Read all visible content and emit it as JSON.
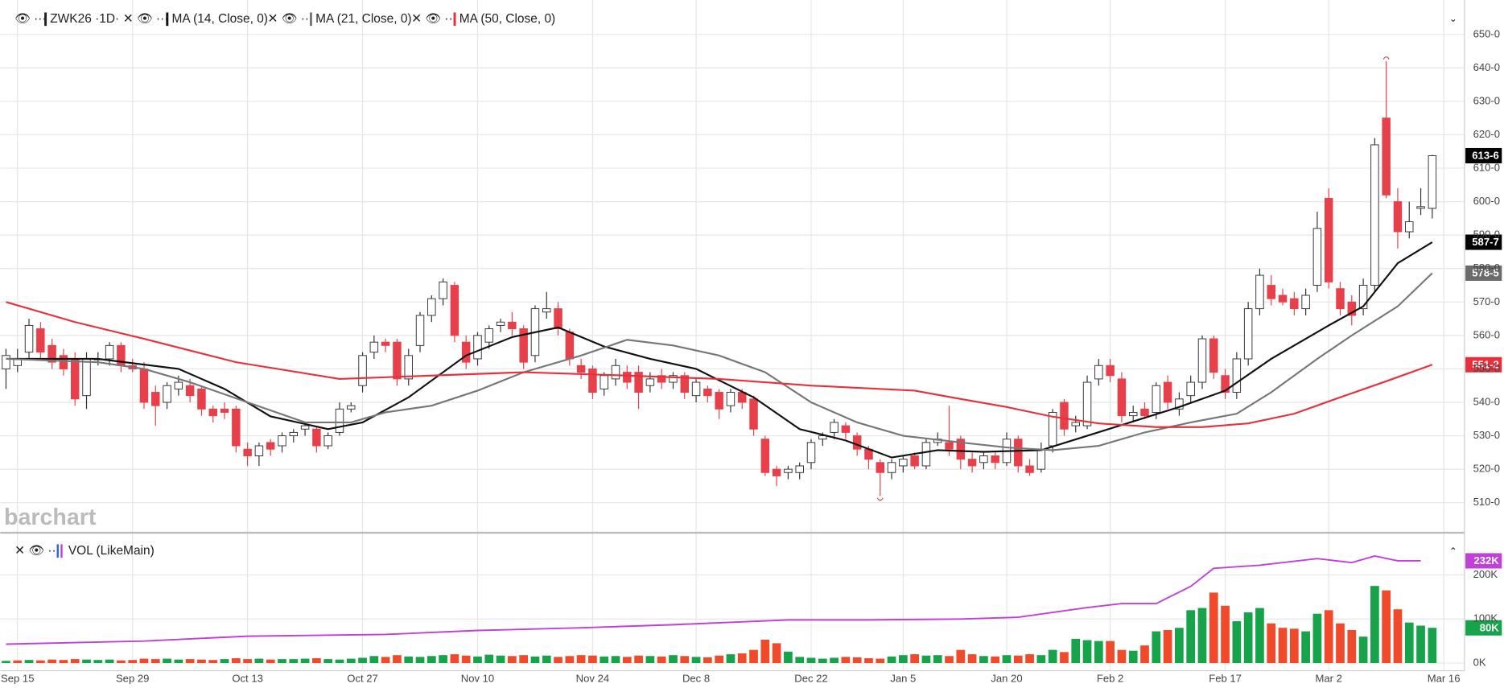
{
  "chart_data": {
    "type": "candlestick",
    "title": "ZWK26 ·1D·",
    "watermark": "barchart",
    "grid": true,
    "up_color": "#ffffff",
    "down_color": "#e8404a",
    "xlim": [
      -0.5,
      126.8
    ],
    "xticks": [
      {
        "value": 1,
        "label": "Sep 15"
      },
      {
        "value": 11,
        "label": "Sep 29"
      },
      {
        "value": 21,
        "label": "Oct 13"
      },
      {
        "value": 31,
        "label": "Oct 27"
      },
      {
        "value": 41,
        "label": "Nov 10"
      },
      {
        "value": 51,
        "label": "Nov 24"
      },
      {
        "value": 60,
        "label": "Dec 8"
      },
      {
        "value": 70,
        "label": "Dec 22"
      },
      {
        "value": 78,
        "label": "Jan 5"
      },
      {
        "value": 87,
        "label": "Jan 20"
      },
      {
        "value": 96,
        "label": "Feb 2"
      },
      {
        "value": 106,
        "label": "Feb 17"
      },
      {
        "value": 115,
        "label": "Mar 2"
      },
      {
        "value": 125,
        "label": "Mar 16"
      }
    ],
    "ylim": [
      501,
      660.3
    ],
    "yticks": [
      {
        "value": 510,
        "label": "510-0"
      },
      {
        "value": 520,
        "label": "520-0"
      },
      {
        "value": 530,
        "label": "530-0"
      },
      {
        "value": 540,
        "label": "540-0"
      },
      {
        "value": 550,
        "label": "550-0"
      },
      {
        "value": 560,
        "label": "560-0"
      },
      {
        "value": 570,
        "label": "570-0"
      },
      {
        "value": 580,
        "label": "580-0"
      },
      {
        "value": 590,
        "label": "590-0"
      },
      {
        "value": 600,
        "label": "600-0"
      },
      {
        "value": 610,
        "label": "610-0"
      },
      {
        "value": 620,
        "label": "620-0"
      },
      {
        "value": 630,
        "label": "630-0"
      },
      {
        "value": 640,
        "label": "640-0"
      },
      {
        "value": 650,
        "label": "650-0"
      }
    ],
    "last_label": "613-6",
    "ohlc": [
      [
        550,
        556,
        544,
        554
      ],
      [
        551,
        556,
        549,
        553
      ],
      [
        555,
        565,
        553,
        563
      ],
      [
        562,
        564,
        553,
        555
      ],
      [
        557,
        559,
        550,
        552
      ],
      [
        554,
        556,
        548,
        550
      ],
      [
        553,
        555,
        539,
        541
      ],
      [
        542,
        555,
        538,
        553
      ],
      [
        553,
        555,
        551,
        553
      ],
      [
        553,
        558,
        551,
        557
      ],
      [
        557,
        558,
        549,
        551
      ],
      [
        551,
        553,
        549,
        550
      ],
      [
        550,
        552,
        538,
        540
      ],
      [
        543,
        545,
        533,
        539
      ],
      [
        540,
        546,
        538,
        545
      ],
      [
        544,
        548,
        542,
        546
      ],
      [
        545,
        547,
        540,
        542
      ],
      [
        544,
        545,
        536,
        538
      ],
      [
        538,
        539,
        534,
        536
      ],
      [
        538,
        540,
        535,
        537
      ],
      [
        538,
        539,
        525,
        527
      ],
      [
        526,
        528,
        521,
        524
      ],
      [
        524,
        528,
        521,
        527
      ],
      [
        528,
        529,
        524,
        526
      ],
      [
        527,
        531,
        525,
        530
      ],
      [
        530,
        532,
        528,
        531
      ],
      [
        532,
        534,
        530,
        533
      ],
      [
        532,
        533,
        525,
        527
      ],
      [
        527,
        531,
        526,
        530
      ],
      [
        531,
        540,
        530,
        538
      ],
      [
        538,
        540,
        537,
        539
      ],
      [
        545,
        555,
        543,
        554
      ],
      [
        555,
        560,
        553,
        558
      ],
      [
        558,
        559,
        555,
        557
      ],
      [
        558,
        559,
        545,
        547
      ],
      [
        547,
        556,
        545,
        554
      ],
      [
        557,
        567,
        555,
        566
      ],
      [
        566,
        572,
        564,
        571
      ],
      [
        571,
        577,
        569,
        576
      ],
      [
        575,
        576,
        558,
        560
      ],
      [
        558,
        560,
        550,
        552
      ],
      [
        553,
        561,
        551,
        560
      ],
      [
        558,
        563,
        556,
        562
      ],
      [
        563,
        565,
        561,
        564
      ],
      [
        564,
        567,
        560,
        562
      ],
      [
        562,
        563,
        550,
        552
      ],
      [
        554,
        569,
        552,
        568
      ],
      [
        567,
        573,
        565,
        568
      ],
      [
        568,
        570,
        560,
        562
      ],
      [
        561,
        562,
        551,
        553
      ],
      [
        551,
        553,
        547,
        549
      ],
      [
        550,
        551,
        541,
        543
      ],
      [
        544,
        549,
        542,
        548
      ],
      [
        547,
        553,
        545,
        551
      ],
      [
        549,
        551,
        544,
        546
      ],
      [
        549,
        551,
        538,
        543
      ],
      [
        545,
        549,
        543,
        547
      ],
      [
        548,
        550,
        544,
        546
      ],
      [
        546,
        549,
        544,
        548
      ],
      [
        548,
        549,
        541,
        543
      ],
      [
        542,
        547,
        540,
        546
      ],
      [
        544,
        545,
        540,
        542
      ],
      [
        543,
        544,
        535,
        538
      ],
      [
        539,
        544,
        537,
        543
      ],
      [
        543,
        544,
        538,
        540
      ],
      [
        541,
        542,
        530,
        532
      ],
      [
        529,
        530,
        518,
        519
      ],
      [
        520,
        521,
        515,
        518
      ],
      [
        519,
        521,
        517,
        520
      ],
      [
        519,
        522,
        517,
        521
      ],
      [
        522,
        529,
        520,
        528
      ],
      [
        529,
        531,
        527,
        530
      ],
      [
        531,
        535,
        529,
        534
      ],
      [
        533,
        534,
        529,
        531
      ],
      [
        530,
        531,
        524,
        526
      ],
      [
        526,
        527,
        520,
        523
      ],
      [
        522,
        523,
        512,
        519
      ],
      [
        519,
        523,
        517,
        522
      ],
      [
        521,
        524,
        519,
        523
      ],
      [
        524,
        525,
        520,
        521
      ],
      [
        521,
        529,
        520,
        528
      ],
      [
        528,
        531,
        527,
        529
      ],
      [
        528,
        539,
        524,
        526
      ],
      [
        529,
        530,
        520,
        523
      ],
      [
        523,
        525,
        519,
        521
      ],
      [
        522,
        525,
        520,
        524
      ],
      [
        524,
        525,
        520,
        522
      ],
      [
        522,
        531,
        521,
        529
      ],
      [
        529,
        530,
        519,
        521
      ],
      [
        521,
        523,
        518,
        519
      ],
      [
        520,
        528,
        519,
        526
      ],
      [
        527,
        538,
        525,
        537
      ],
      [
        540,
        541,
        530,
        532
      ],
      [
        533,
        536,
        531,
        534
      ],
      [
        533,
        548,
        532,
        546
      ],
      [
        547,
        553,
        545,
        551
      ],
      [
        551,
        553,
        546,
        548
      ],
      [
        547,
        549,
        534,
        536
      ],
      [
        536,
        539,
        534,
        537
      ],
      [
        538,
        540,
        535,
        536
      ],
      [
        537,
        546,
        535,
        545
      ],
      [
        546,
        548,
        538,
        540
      ],
      [
        538,
        543,
        536,
        541
      ],
      [
        542,
        548,
        540,
        546
      ],
      [
        546,
        560,
        544,
        559
      ],
      [
        559,
        560,
        547,
        549
      ],
      [
        548,
        550,
        541,
        543
      ],
      [
        543,
        555,
        541,
        553
      ],
      [
        553,
        570,
        551,
        568
      ],
      [
        568,
        580,
        566,
        578
      ],
      [
        575,
        578,
        569,
        571
      ],
      [
        572,
        574,
        569,
        570
      ],
      [
        571,
        573,
        566,
        568
      ],
      [
        568,
        574,
        566,
        572
      ],
      [
        575,
        597,
        573,
        592
      ],
      [
        601,
        604,
        574,
        576
      ],
      [
        574,
        576,
        566,
        568
      ],
      [
        570,
        572,
        563,
        566
      ],
      [
        568,
        577,
        566,
        575
      ],
      [
        575,
        619,
        573,
        617
      ],
      [
        625,
        642,
        601,
        602
      ],
      [
        600,
        604,
        586,
        591
      ],
      [
        591,
        600,
        589,
        594
      ],
      [
        598,
        604,
        596,
        598.5
      ],
      [
        598,
        614,
        595,
        613.75
      ]
    ],
    "overlays": [
      {
        "name": "MA (14, Close, 0)",
        "color": "#111111",
        "last_label": "587-7",
        "x": [
          0,
          8,
          15,
          19,
          23,
          28,
          31,
          35,
          40,
          44,
          48,
          52,
          56,
          60,
          65,
          69,
          73,
          77,
          81,
          85,
          90,
          94,
          98,
          102,
          106,
          110,
          115,
          118,
          121,
          124
        ],
        "values": [
          553,
          553,
          550,
          544,
          535.8,
          532,
          534,
          541.5,
          554,
          559.5,
          562.4,
          556.7,
          553,
          550,
          541.5,
          532,
          528.6,
          523.5,
          525.7,
          525.2,
          525.7,
          530,
          534.3,
          538.6,
          543.5,
          553,
          563,
          568.7,
          581.6,
          587.875
        ]
      },
      {
        "name": "MA (21, Close, 0)",
        "color": "#777777",
        "last_label": "578-5",
        "x": [
          0,
          8,
          12,
          16,
          21,
          26,
          30,
          33,
          37,
          41,
          45,
          50,
          54,
          58,
          62,
          66,
          70,
          74,
          78,
          83,
          87,
          91,
          95,
          99,
          103,
          107,
          110,
          114,
          117,
          121,
          124
        ],
        "values": [
          553,
          552,
          550,
          546,
          540,
          534,
          534,
          537,
          539,
          543.5,
          549,
          554,
          558.7,
          557,
          554,
          549,
          540,
          534,
          530,
          528,
          526.5,
          525.7,
          527,
          531,
          534,
          536.6,
          543,
          553,
          560,
          568.7,
          578.625
        ]
      },
      {
        "name": "MA (50, Close, 0)",
        "color": "#e8303c",
        "last_label": "551-2",
        "x": [
          0,
          6,
          12,
          20,
          29,
          37,
          45,
          54,
          62,
          70,
          79,
          83,
          87,
          91,
          95,
          100,
          104,
          108,
          112,
          116,
          120,
          124
        ],
        "values": [
          570,
          564,
          559,
          552,
          547,
          548,
          549,
          548,
          547,
          545,
          543.5,
          541,
          538.6,
          535.7,
          533.7,
          532.6,
          532.6,
          533.7,
          536.6,
          541.5,
          546.3,
          551.25
        ]
      }
    ],
    "volume": {
      "name": "VOL (LikeMain)",
      "up_color": "#16a34a",
      "down_color": "#f04a2a",
      "ylim": [
        -17.4,
        295.7
      ],
      "yticks": [
        {
          "value": 0,
          "label": "0K"
        },
        {
          "value": 100,
          "label": "100K"
        },
        {
          "value": 200,
          "label": "200K"
        }
      ],
      "last_label": "80K",
      "values": [
        5,
        6,
        7,
        6,
        8,
        7,
        9,
        8,
        7,
        8,
        6,
        7,
        10,
        9,
        10,
        8,
        9,
        8,
        7,
        9,
        11,
        9,
        10,
        8,
        9,
        9,
        10,
        11,
        9,
        8,
        10,
        12,
        16,
        14,
        18,
        15,
        14,
        16,
        18,
        20,
        17,
        15,
        19,
        17,
        16,
        18,
        15,
        17,
        14,
        16,
        18,
        17,
        15,
        16,
        14,
        17,
        16,
        15,
        18,
        16,
        14,
        13,
        17,
        20,
        22,
        30,
        53,
        45,
        26,
        14,
        12,
        10,
        12,
        14,
        13,
        11,
        10,
        15,
        18,
        20,
        17,
        18,
        16,
        30,
        20,
        16,
        15,
        18,
        17,
        20,
        18,
        30,
        25,
        55,
        52,
        50,
        50,
        30,
        28,
        40,
        72,
        75,
        80,
        120,
        125,
        160,
        130,
        95,
        115,
        125,
        90,
        80,
        78,
        72,
        112,
        120,
        90,
        75,
        60,
        175,
        165,
        122,
        92,
        85,
        80
      ],
      "average": {
        "color": "#c040d8",
        "last_label": "232K",
        "x": [
          0,
          12,
          21,
          33,
          41,
          50,
          58,
          68,
          75,
          83,
          88,
          94,
          97,
          100,
          103,
          105,
          109,
          114,
          117,
          119,
          121,
          123
        ],
        "values": [
          43,
          50,
          61,
          65,
          74,
          80,
          87,
          98,
          98,
          100,
          104,
          126,
          135,
          135,
          174,
          215,
          222,
          237,
          228,
          243,
          232,
          232
        ]
      }
    }
  }
}
